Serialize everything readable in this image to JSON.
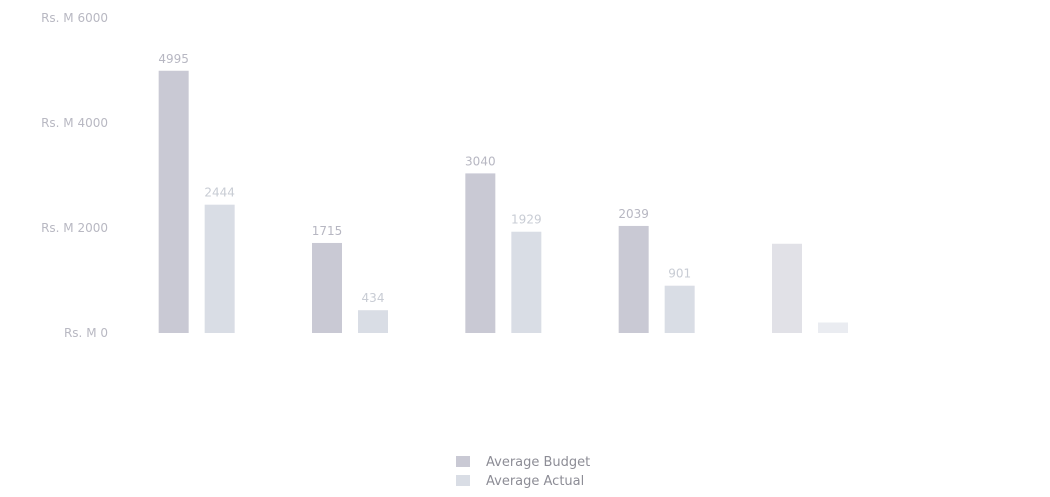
{
  "chart_data": {
    "type": "bar",
    "title": "",
    "xlabel": "",
    "ylabel": "",
    "ylim": [
      0,
      6000
    ],
    "yticks": [
      0,
      2000,
      4000,
      6000
    ],
    "ytick_labels": [
      "Rs. M 0",
      "Rs. M 2000",
      "Rs. M 4000",
      "Rs. M 6000"
    ],
    "grid": false,
    "legend": "bottom-center",
    "categories": [
      "",
      "",
      "",
      "",
      "",
      ""
    ],
    "series": [
      {
        "name": "Average Budget",
        "color": "#c9c9d4",
        "values": [
          4995,
          1715,
          3040,
          2039,
          1700,
          null
        ],
        "labels": [
          "4995",
          "1715",
          "3040",
          "2039",
          "",
          ""
        ]
      },
      {
        "name": "Average Actual",
        "color": "#d9dde5",
        "values": [
          2444,
          434,
          1929,
          901,
          200,
          null
        ],
        "labels": [
          "2444",
          "434",
          "1929",
          "901",
          "",
          ""
        ]
      }
    ]
  }
}
